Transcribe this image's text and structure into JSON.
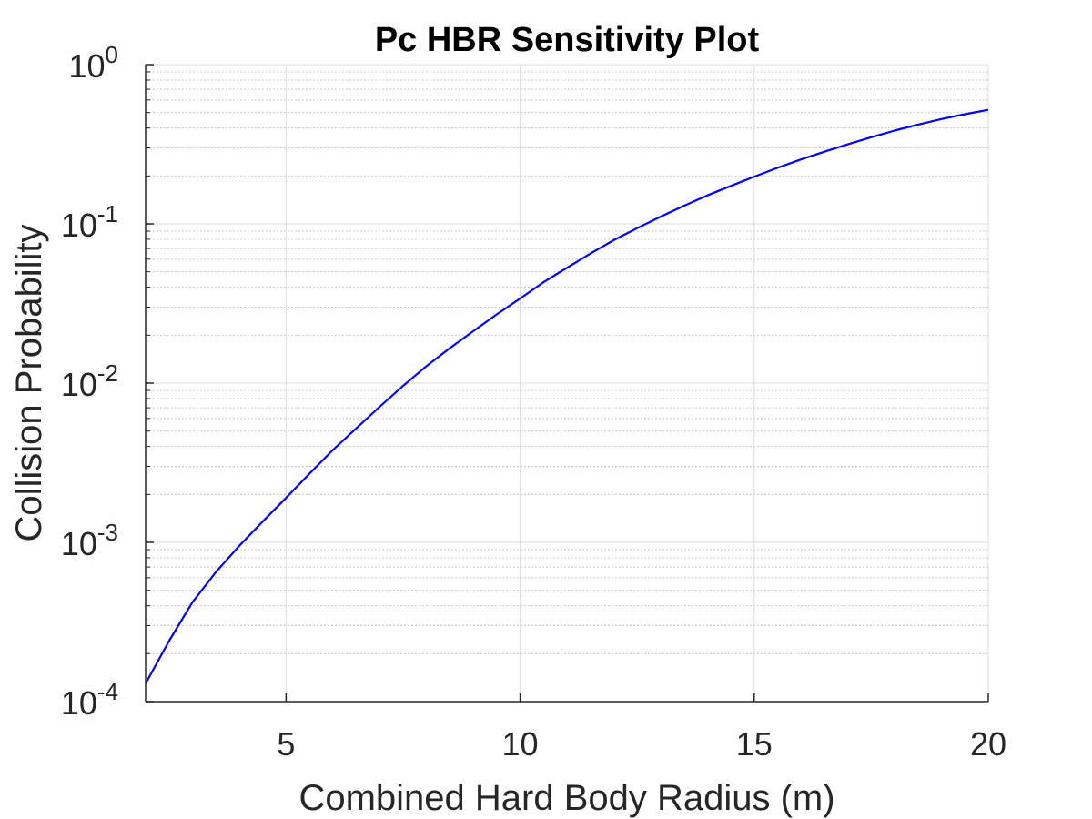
{
  "chart_data": {
    "type": "line",
    "title": "Pc HBR Sensitivity Plot",
    "xlabel": "Combined Hard Body Radius (m)",
    "ylabel": "Collision Probability",
    "xlim": [
      2,
      20
    ],
    "ylim": [
      0.0001,
      1
    ],
    "yscale": "log",
    "grid": true,
    "minor_grid": true,
    "x_ticks": [
      5,
      10,
      15,
      20
    ],
    "x_tick_labels": [
      "5",
      "10",
      "15",
      "20"
    ],
    "y_ticks": [
      0.0001,
      0.001,
      0.01,
      0.1,
      1
    ],
    "y_tick_labels": [
      {
        "base": "10",
        "exp": "-4"
      },
      {
        "base": "10",
        "exp": "-3"
      },
      {
        "base": "10",
        "exp": "-2"
      },
      {
        "base": "10",
        "exp": "-1"
      },
      {
        "base": "10",
        "exp": "0"
      }
    ],
    "series": [
      {
        "color": "#0000ff",
        "x": [
          2,
          2.5,
          3,
          3.5,
          4,
          4.5,
          5,
          5.5,
          6,
          6.5,
          7,
          7.5,
          8,
          8.5,
          9,
          9.5,
          10,
          10.5,
          11,
          11.5,
          12,
          12.5,
          13,
          13.5,
          14,
          14.5,
          15,
          15.5,
          16,
          16.5,
          17,
          17.5,
          18,
          18.5,
          19,
          19.5,
          20
        ],
        "y": [
          0.00013,
          0.00024,
          0.00042,
          0.00065,
          0.00095,
          0.00135,
          0.0019,
          0.0027,
          0.0038,
          0.0052,
          0.0071,
          0.0096,
          0.0128,
          0.0166,
          0.0212,
          0.027,
          0.034,
          0.043,
          0.053,
          0.065,
          0.079,
          0.094,
          0.111,
          0.13,
          0.151,
          0.173,
          0.198,
          0.225,
          0.254,
          0.284,
          0.316,
          0.35,
          0.385,
          0.42,
          0.455,
          0.488,
          0.52
        ]
      }
    ]
  }
}
